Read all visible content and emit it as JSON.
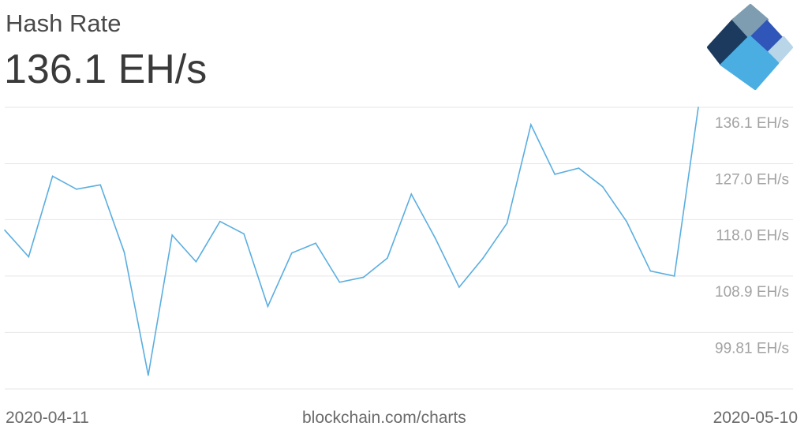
{
  "header": {
    "title": "Hash Rate",
    "current_value": "136.1 EH/s"
  },
  "logo": {
    "name": "blockchain-logo",
    "colors": [
      "#1c3a5e",
      "#7f9db1",
      "#2f56b8",
      "#b8d6e8",
      "#4aaee3"
    ]
  },
  "footer": {
    "start_date": "2020-04-11",
    "source": "blockchain.com/charts",
    "end_date": "2020-05-10"
  },
  "chart_data": {
    "type": "line",
    "x": [
      "2020-04-11",
      "2020-04-12",
      "2020-04-13",
      "2020-04-14",
      "2020-04-15",
      "2020-04-16",
      "2020-04-17",
      "2020-04-18",
      "2020-04-19",
      "2020-04-20",
      "2020-04-21",
      "2020-04-22",
      "2020-04-23",
      "2020-04-24",
      "2020-04-25",
      "2020-04-26",
      "2020-04-27",
      "2020-04-28",
      "2020-04-29",
      "2020-04-30",
      "2020-05-01",
      "2020-05-02",
      "2020-05-03",
      "2020-05-04",
      "2020-05-05",
      "2020-05-06",
      "2020-05-07",
      "2020-05-08",
      "2020-05-09",
      "2020-05-10"
    ],
    "series": [
      {
        "values": [
          116.3,
          112.0,
          125.0,
          122.9,
          123.6,
          112.7,
          92.9,
          115.5,
          111.2,
          117.7,
          115.7,
          104.0,
          112.6,
          114.2,
          107.9,
          108.7,
          111.8,
          122.1,
          115.0,
          107.1,
          111.8,
          117.4,
          133.3,
          125.3,
          126.3,
          123.3,
          117.7,
          109.7,
          108.9,
          136.1
        ],
        "color": "#5aaee0"
      }
    ],
    "yticks": [
      136.1,
      127.0,
      118.0,
      108.9,
      99.81
    ],
    "ytick_labels": [
      "136.1 EH/s",
      "127.0 EH/s",
      "118.0 EH/s",
      "108.9 EH/s",
      "99.81 EH/s"
    ],
    "ylim": [
      90.7,
      136.1
    ],
    "unit": "EH/s",
    "grid": true,
    "y_axis_position": "right"
  }
}
